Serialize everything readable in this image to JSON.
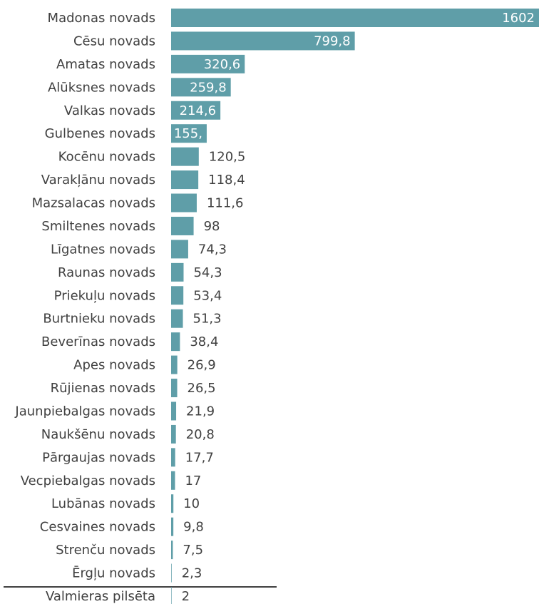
{
  "chart_data": {
    "type": "hbar",
    "color": "#5f9ea8",
    "categories": [
      "Madonas novads",
      "Cēsu novads",
      "Amatas novads",
      "Alūksnes novads",
      "Valkas novads",
      "Gulbenes novads",
      "Kocēnu novads",
      "Varakļānu novads",
      "Mazsalacas novads",
      "Smiltenes novads",
      "Līgatnes novads",
      "Raunas novads",
      "Priekuļu novads",
      "Burtnieku novads",
      "Beverīnas novads",
      "Apes novads",
      "Rūjienas novads",
      "Jaunpiebalgas novads",
      "Naukšēnu novads",
      "Pārgaujas novads",
      "Vecpiebalgas novads",
      "Lubānas novads",
      "Cesvaines novads",
      "Strenču novads",
      "Ērgļu novads",
      "Valmieras pilsēta"
    ],
    "values": [
      1602,
      799.8,
      320.6,
      259.8,
      214.6,
      155,
      120.5,
      118.4,
      111.6,
      98,
      74.3,
      54.3,
      53.4,
      51.3,
      38.4,
      26.9,
      26.5,
      21.9,
      20.8,
      17.7,
      17,
      10,
      9.8,
      7.5,
      2.3,
      2
    ],
    "value_labels": [
      "1602",
      "799,8",
      "320,6",
      "259,8",
      "214,6",
      "155,",
      "120,5",
      "118,4",
      "111,6",
      "98",
      "74,3",
      "54,3",
      "53,4",
      "51,3",
      "38,4",
      "26,9",
      "26,5",
      "21,9",
      "20,8",
      "17,7",
      "17",
      "10",
      "9,8",
      "7,5",
      "2,3",
      "2"
    ]
  }
}
